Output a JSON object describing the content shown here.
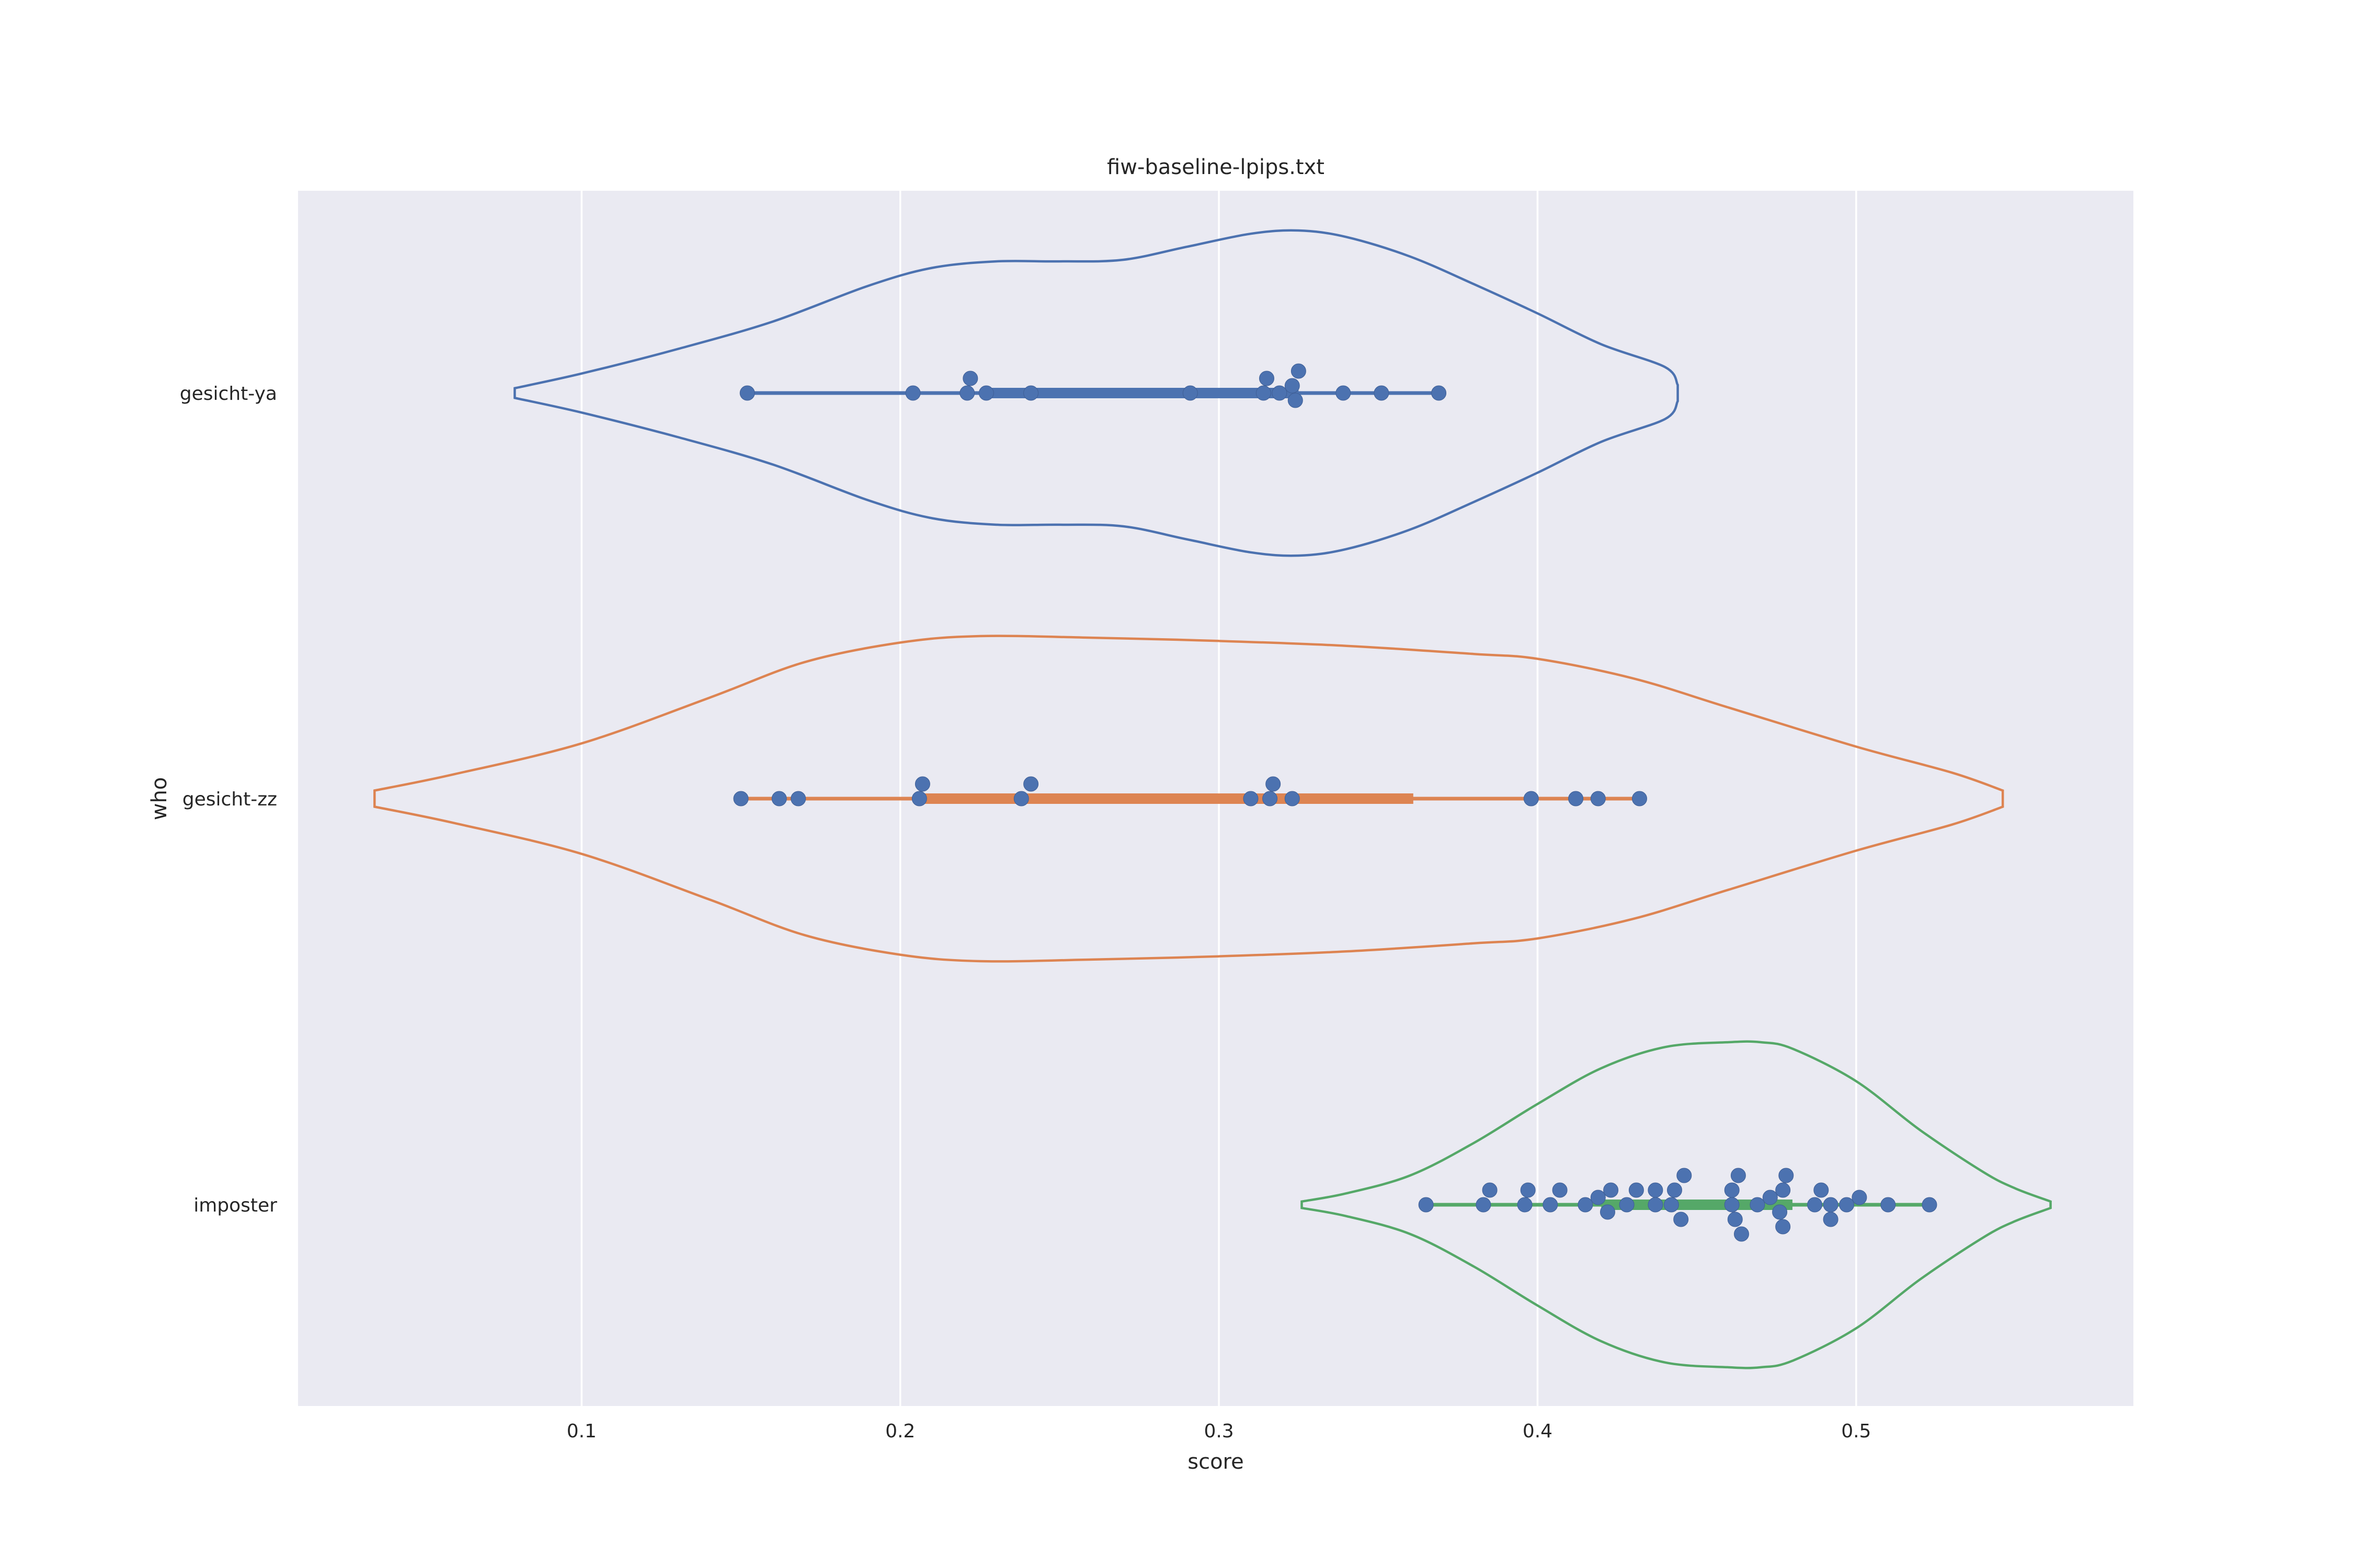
{
  "chart_data": {
    "type": "violin",
    "orientation": "horizontal",
    "title": "fiw-baseline-lpips.txt",
    "xlabel": "score",
    "ylabel": "who",
    "xlim": [
      0.011,
      0.587
    ],
    "x_ticks": [
      0.1,
      0.2,
      0.3,
      0.4,
      0.5
    ],
    "x_tick_labels": [
      "0.1",
      "0.2",
      "0.3",
      "0.4",
      "0.5"
    ],
    "grid": "x",
    "background": "#eaeaf2",
    "point_color": "#4c72b0",
    "categories": [
      "gesicht-ya",
      "gesicht-zz",
      "imposter"
    ],
    "series": [
      {
        "category": "gesicht-ya",
        "color": "#4c72b0",
        "range": [
          0.079,
          0.444
        ],
        "line_range": [
          0.152,
          0.369
        ],
        "box_range": [
          0.227,
          0.325
        ],
        "density_profile": [
          [
            0.079,
            0.03
          ],
          [
            0.1,
            0.12
          ],
          [
            0.13,
            0.27
          ],
          [
            0.16,
            0.44
          ],
          [
            0.19,
            0.66
          ],
          [
            0.21,
            0.77
          ],
          [
            0.23,
            0.81
          ],
          [
            0.25,
            0.81
          ],
          [
            0.27,
            0.82
          ],
          [
            0.29,
            0.9
          ],
          [
            0.31,
            0.98
          ],
          [
            0.325,
            1.0
          ],
          [
            0.34,
            0.96
          ],
          [
            0.36,
            0.84
          ],
          [
            0.38,
            0.67
          ],
          [
            0.4,
            0.49
          ],
          [
            0.42,
            0.3
          ],
          [
            0.44,
            0.16
          ],
          [
            0.444,
            0.05
          ]
        ],
        "points": [
          0.152,
          0.204,
          0.221,
          0.222,
          0.227,
          0.241,
          0.291,
          0.314,
          0.315,
          0.319,
          0.323,
          0.324,
          0.325,
          0.339,
          0.351,
          0.369
        ]
      },
      {
        "category": "gesicht-zz",
        "color": "#dd8452",
        "range": [
          0.035,
          0.546
        ],
        "line_range": [
          0.15,
          0.432
        ],
        "box_range": [
          0.207,
          0.361
        ],
        "density_profile": [
          [
            0.035,
            0.05
          ],
          [
            0.06,
            0.15
          ],
          [
            0.1,
            0.34
          ],
          [
            0.14,
            0.62
          ],
          [
            0.17,
            0.84
          ],
          [
            0.2,
            0.96
          ],
          [
            0.225,
            1.0
          ],
          [
            0.26,
            0.99
          ],
          [
            0.3,
            0.97
          ],
          [
            0.34,
            0.94
          ],
          [
            0.38,
            0.89
          ],
          [
            0.4,
            0.86
          ],
          [
            0.43,
            0.74
          ],
          [
            0.46,
            0.56
          ],
          [
            0.5,
            0.32
          ],
          [
            0.53,
            0.16
          ],
          [
            0.546,
            0.05
          ]
        ],
        "points": [
          0.15,
          0.162,
          0.168,
          0.206,
          0.207,
          0.238,
          0.241,
          0.31,
          0.316,
          0.317,
          0.323,
          0.398,
          0.412,
          0.419,
          0.432
        ]
      },
      {
        "category": "imposter",
        "color": "#55a868",
        "range": [
          0.326,
          0.561
        ],
        "line_range": [
          0.365,
          0.523
        ],
        "box_range": [
          0.42,
          0.48
        ],
        "density_profile": [
          [
            0.326,
            0.02
          ],
          [
            0.34,
            0.07
          ],
          [
            0.36,
            0.18
          ],
          [
            0.38,
            0.38
          ],
          [
            0.4,
            0.62
          ],
          [
            0.42,
            0.84
          ],
          [
            0.44,
            0.97
          ],
          [
            0.46,
            1.0
          ],
          [
            0.47,
            1.0
          ],
          [
            0.48,
            0.96
          ],
          [
            0.5,
            0.76
          ],
          [
            0.52,
            0.46
          ],
          [
            0.54,
            0.2
          ],
          [
            0.55,
            0.1
          ],
          [
            0.561,
            0.02
          ]
        ],
        "points": [
          0.365,
          0.383,
          0.385,
          0.396,
          0.397,
          0.404,
          0.407,
          0.415,
          0.419,
          0.422,
          0.423,
          0.428,
          0.431,
          0.437,
          0.437,
          0.442,
          0.443,
          0.445,
          0.446,
          0.461,
          0.461,
          0.462,
          0.463,
          0.464,
          0.469,
          0.473,
          0.476,
          0.477,
          0.477,
          0.478,
          0.487,
          0.489,
          0.492,
          0.492,
          0.497,
          0.501,
          0.51,
          0.523
        ]
      }
    ]
  }
}
